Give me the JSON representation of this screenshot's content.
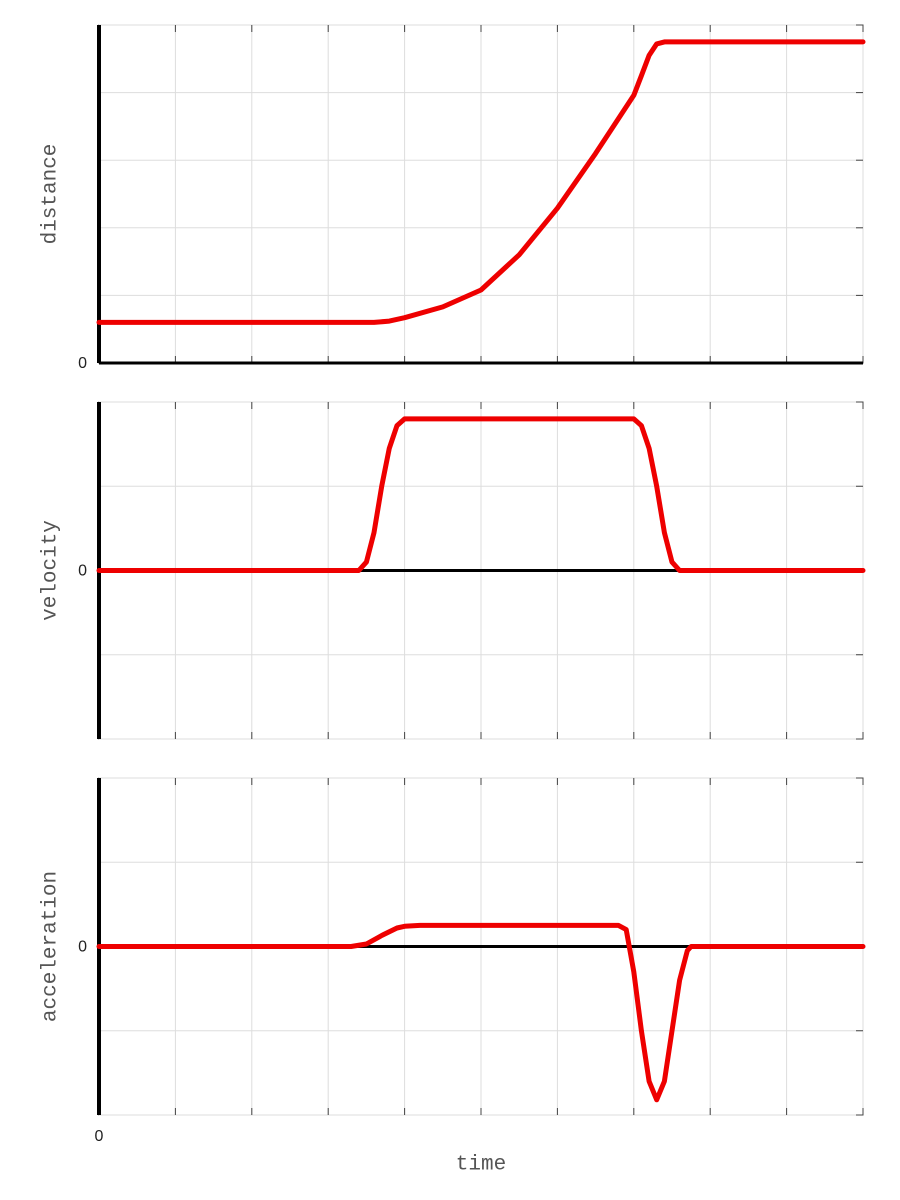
{
  "chart_data": [
    {
      "type": "line",
      "ylabel": "distance",
      "x": [
        0,
        3.6,
        3.8,
        4.0,
        4.5,
        5,
        5.5,
        6,
        6.5,
        7,
        7.1,
        7.2,
        7.3,
        7.4,
        10
      ],
      "series": [
        {
          "color": "#ee0000",
          "values": [
            0.6,
            0.6,
            0.62,
            0.67,
            0.83,
            1.08,
            1.6,
            2.29,
            3.1,
            3.96,
            4.25,
            4.55,
            4.72,
            4.75,
            4.75
          ]
        }
      ],
      "xlim": [
        0,
        10
      ],
      "ylim": [
        0,
        5
      ],
      "yticks": [
        0
      ],
      "xgrid": [
        0,
        1,
        2,
        3,
        4,
        5,
        6,
        7,
        8,
        9,
        10
      ],
      "ygrid": [
        0,
        1,
        2,
        3,
        4,
        5
      ]
    },
    {
      "type": "line",
      "ylabel": "velocity",
      "x": [
        0,
        3.4,
        3.5,
        3.6,
        3.7,
        3.8,
        3.9,
        4.0,
        7.0,
        7.1,
        7.2,
        7.3,
        7.4,
        7.5,
        7.6,
        10
      ],
      "series": [
        {
          "color": "#ee0000",
          "values": [
            0,
            0,
            0.1,
            0.45,
            1.0,
            1.45,
            1.72,
            1.8,
            1.8,
            1.72,
            1.45,
            1.0,
            0.45,
            0.1,
            0,
            0
          ]
        }
      ],
      "xlim": [
        0,
        10
      ],
      "ylim": [
        -2,
        2
      ],
      "yticks": [
        0
      ],
      "xgrid": [
        0,
        1,
        2,
        3,
        4,
        5,
        6,
        7,
        8,
        9,
        10
      ],
      "ygrid": [
        -2,
        -1,
        0,
        1,
        2
      ]
    },
    {
      "type": "line",
      "ylabel": "acceleration",
      "xlabel": "time",
      "x": [
        0,
        3.3,
        3.5,
        3.7,
        3.9,
        4.0,
        4.2,
        6.8,
        6.9,
        7.0,
        7.1,
        7.2,
        7.3,
        7.4,
        7.5,
        7.6,
        7.7,
        7.75,
        10
      ],
      "series": [
        {
          "color": "#ee0000",
          "values": [
            0,
            0,
            0.03,
            0.13,
            0.22,
            0.24,
            0.25,
            0.25,
            0.2,
            -0.3,
            -1.0,
            -1.6,
            -1.82,
            -1.6,
            -1.0,
            -0.4,
            -0.05,
            0,
            0
          ]
        }
      ],
      "xlim": [
        0,
        10
      ],
      "ylim": [
        -2,
        2
      ],
      "yticks": [
        0
      ],
      "xticks": [
        0
      ],
      "xgrid": [
        0,
        1,
        2,
        3,
        4,
        5,
        6,
        7,
        8,
        9,
        10
      ],
      "ygrid": [
        -2,
        -1,
        0,
        1,
        2
      ]
    }
  ]
}
